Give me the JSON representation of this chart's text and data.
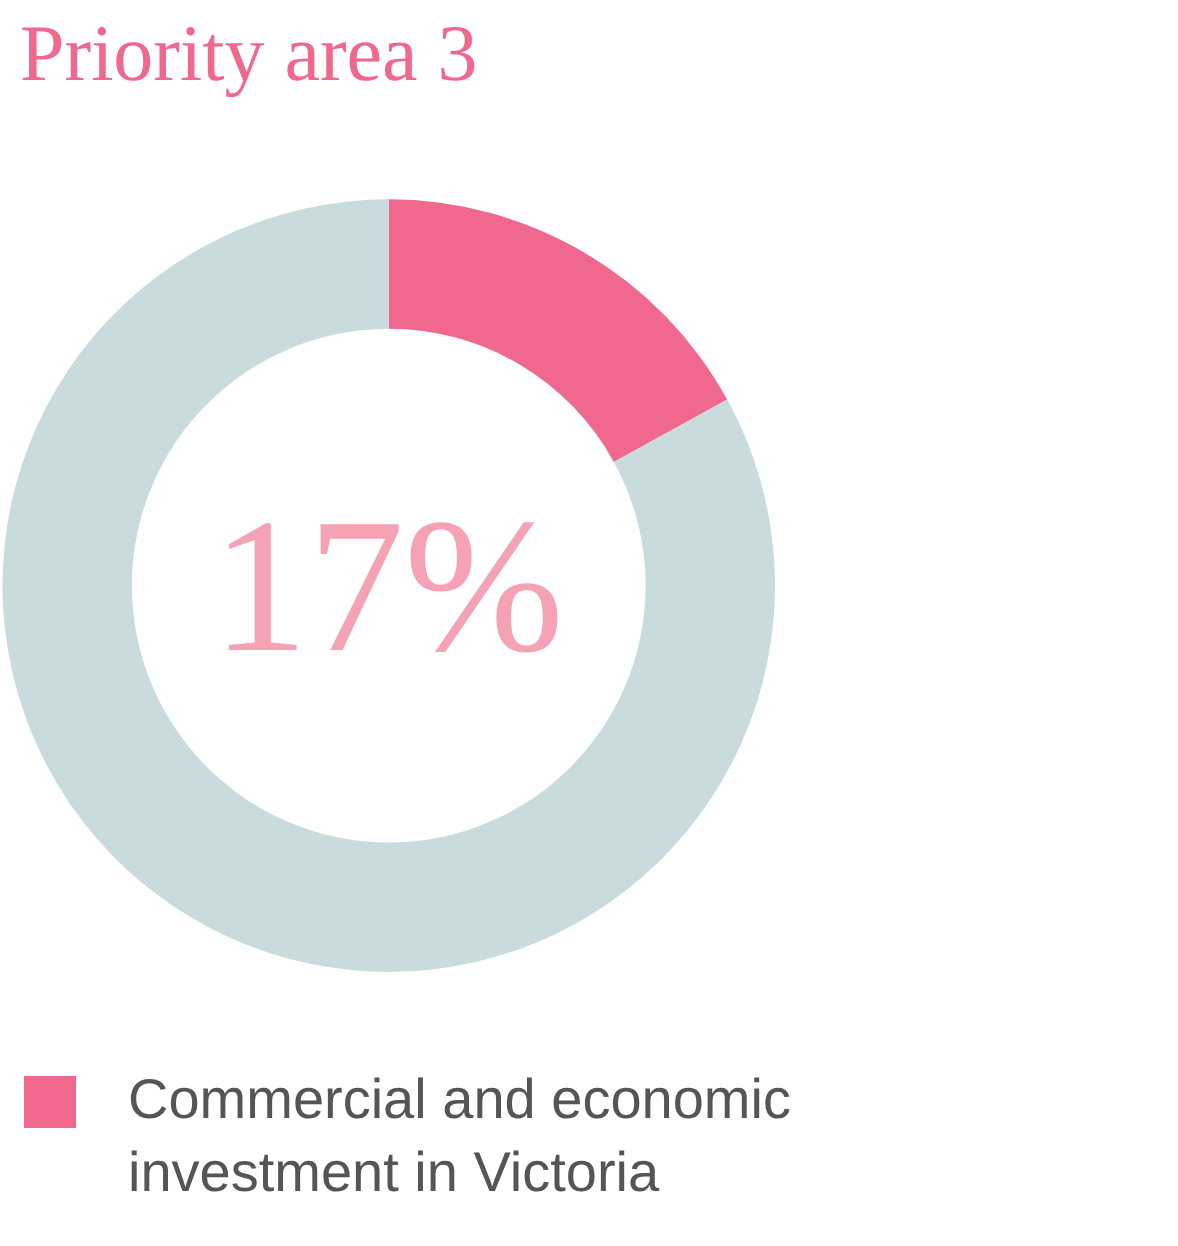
{
  "chart_data": {
    "type": "donut",
    "title": "Priority area 3",
    "categories": [
      "Commercial and economic investment in Victoria",
      null
    ],
    "values": [
      17,
      83
    ],
    "colors": [
      "#f0688e",
      "#c9dbdc"
    ],
    "annotations": [
      "17%"
    ],
    "legend": "bottom left"
  }
}
